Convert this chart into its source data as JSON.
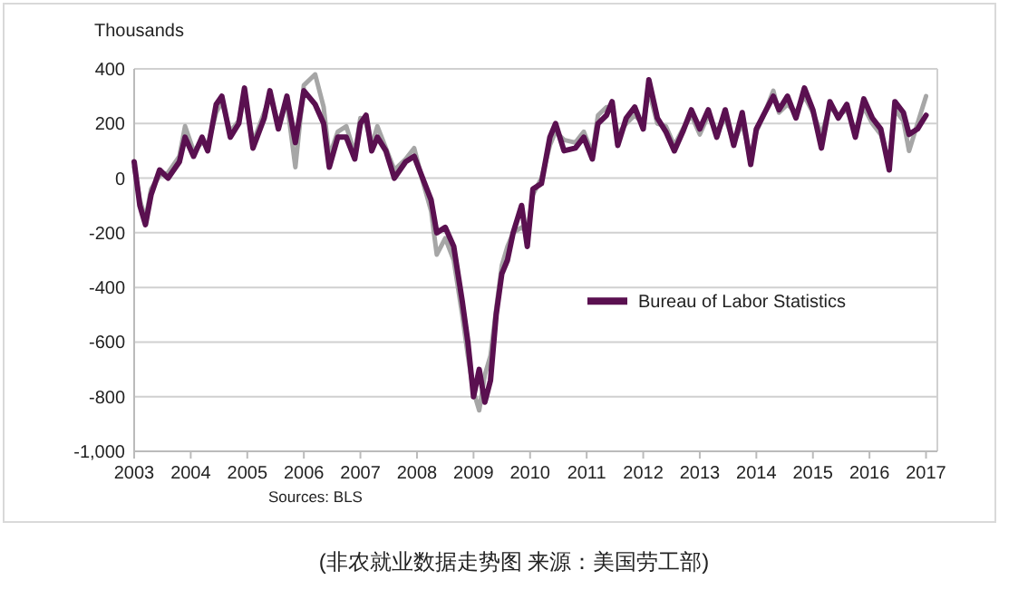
{
  "chart_data": {
    "type": "line",
    "ylabel": "Thousands",
    "x": [
      2003.0,
      2003.1,
      2003.2,
      2003.3,
      2003.45,
      2003.6,
      2003.8,
      2003.9,
      2004.05,
      2004.2,
      2004.3,
      2004.45,
      2004.55,
      2004.7,
      2004.85,
      2004.95,
      2005.1,
      2005.3,
      2005.4,
      2005.55,
      2005.7,
      2005.85,
      2006.0,
      2006.2,
      2006.35,
      2006.45,
      2006.6,
      2006.75,
      2006.9,
      2007.0,
      2007.1,
      2007.2,
      2007.3,
      2007.45,
      2007.6,
      2007.8,
      2007.95,
      2008.1,
      2008.25,
      2008.35,
      2008.5,
      2008.65,
      2008.8,
      2008.9,
      2009.0,
      2009.1,
      2009.2,
      2009.3,
      2009.4,
      2009.5,
      2009.6,
      2009.7,
      2009.85,
      2009.95,
      2010.05,
      2010.2,
      2010.35,
      2010.45,
      2010.6,
      2010.8,
      2010.95,
      2011.1,
      2011.2,
      2011.35,
      2011.45,
      2011.55,
      2011.7,
      2011.85,
      2012.0,
      2012.1,
      2012.25,
      2012.4,
      2012.55,
      2012.7,
      2012.85,
      2013.0,
      2013.15,
      2013.3,
      2013.45,
      2013.6,
      2013.75,
      2013.9,
      2014.0,
      2014.15,
      2014.3,
      2014.4,
      2014.55,
      2014.7,
      2014.85,
      2015.0,
      2015.15,
      2015.3,
      2015.45,
      2015.6,
      2015.75,
      2015.9,
      2016.05,
      2016.2,
      2016.35,
      2016.45,
      2016.6,
      2016.7,
      2016.85,
      2017.0
    ],
    "series": [
      {
        "color": "#a6a6a6",
        "values": [
          40,
          -80,
          -150,
          -40,
          10,
          20,
          80,
          190,
          100,
          130,
          120,
          240,
          280,
          170,
          210,
          300,
          130,
          240,
          300,
          200,
          280,
          40,
          340,
          380,
          260,
          80,
          170,
          190,
          90,
          220,
          200,
          120,
          190,
          110,
          30,
          70,
          110,
          -10,
          -120,
          -280,
          -220,
          -300,
          -500,
          -650,
          -780,
          -850,
          -720,
          -650,
          -480,
          -320,
          -250,
          -200,
          -180,
          -200,
          -60,
          0,
          120,
          170,
          140,
          130,
          170,
          90,
          230,
          260,
          260,
          160,
          200,
          230,
          200,
          320,
          200,
          190,
          120,
          180,
          230,
          160,
          230,
          170,
          220,
          130,
          200,
          80,
          170,
          240,
          320,
          240,
          270,
          240,
          300,
          240,
          160,
          260,
          230,
          250,
          170,
          260,
          200,
          160,
          60,
          250,
          210,
          100,
          200,
          300
        ]
      },
      {
        "name": "Bureau of Labor Statistics",
        "color": "#5a1050",
        "values": [
          60,
          -100,
          -170,
          -60,
          30,
          0,
          60,
          150,
          80,
          150,
          100,
          270,
          300,
          150,
          200,
          330,
          110,
          220,
          320,
          180,
          300,
          130,
          320,
          270,
          200,
          40,
          150,
          150,
          70,
          200,
          230,
          100,
          150,
          100,
          0,
          60,
          80,
          0,
          -80,
          -200,
          -180,
          -250,
          -450,
          -600,
          -800,
          -700,
          -820,
          -740,
          -500,
          -350,
          -300,
          -200,
          -100,
          -250,
          -40,
          -20,
          150,
          200,
          100,
          110,
          150,
          70,
          200,
          230,
          280,
          120,
          220,
          260,
          180,
          360,
          220,
          170,
          100,
          170,
          250,
          180,
          250,
          150,
          250,
          120,
          240,
          50,
          180,
          240,
          300,
          250,
          300,
          220,
          330,
          250,
          110,
          280,
          220,
          270,
          150,
          290,
          220,
          180,
          30,
          280,
          240,
          160,
          180,
          230
        ]
      }
    ],
    "xlim": [
      2003,
      2017.2
    ],
    "xticks": [
      2003,
      2004,
      2005,
      2006,
      2007,
      2008,
      2009,
      2010,
      2011,
      2012,
      2013,
      2014,
      2015,
      2016,
      2017
    ],
    "ylim": [
      -1000,
      400
    ],
    "yticks": [
      {
        "value": -1000,
        "label": "-1,000"
      },
      -800,
      -600,
      -400,
      -200,
      0,
      200,
      400
    ],
    "grid": "y",
    "legend": "right",
    "line_style": "solid",
    "marker": "none",
    "annotations": [
      "Sources: BLS",
      "(非农就业数据走势图 来源：美国劳工部)"
    ]
  }
}
